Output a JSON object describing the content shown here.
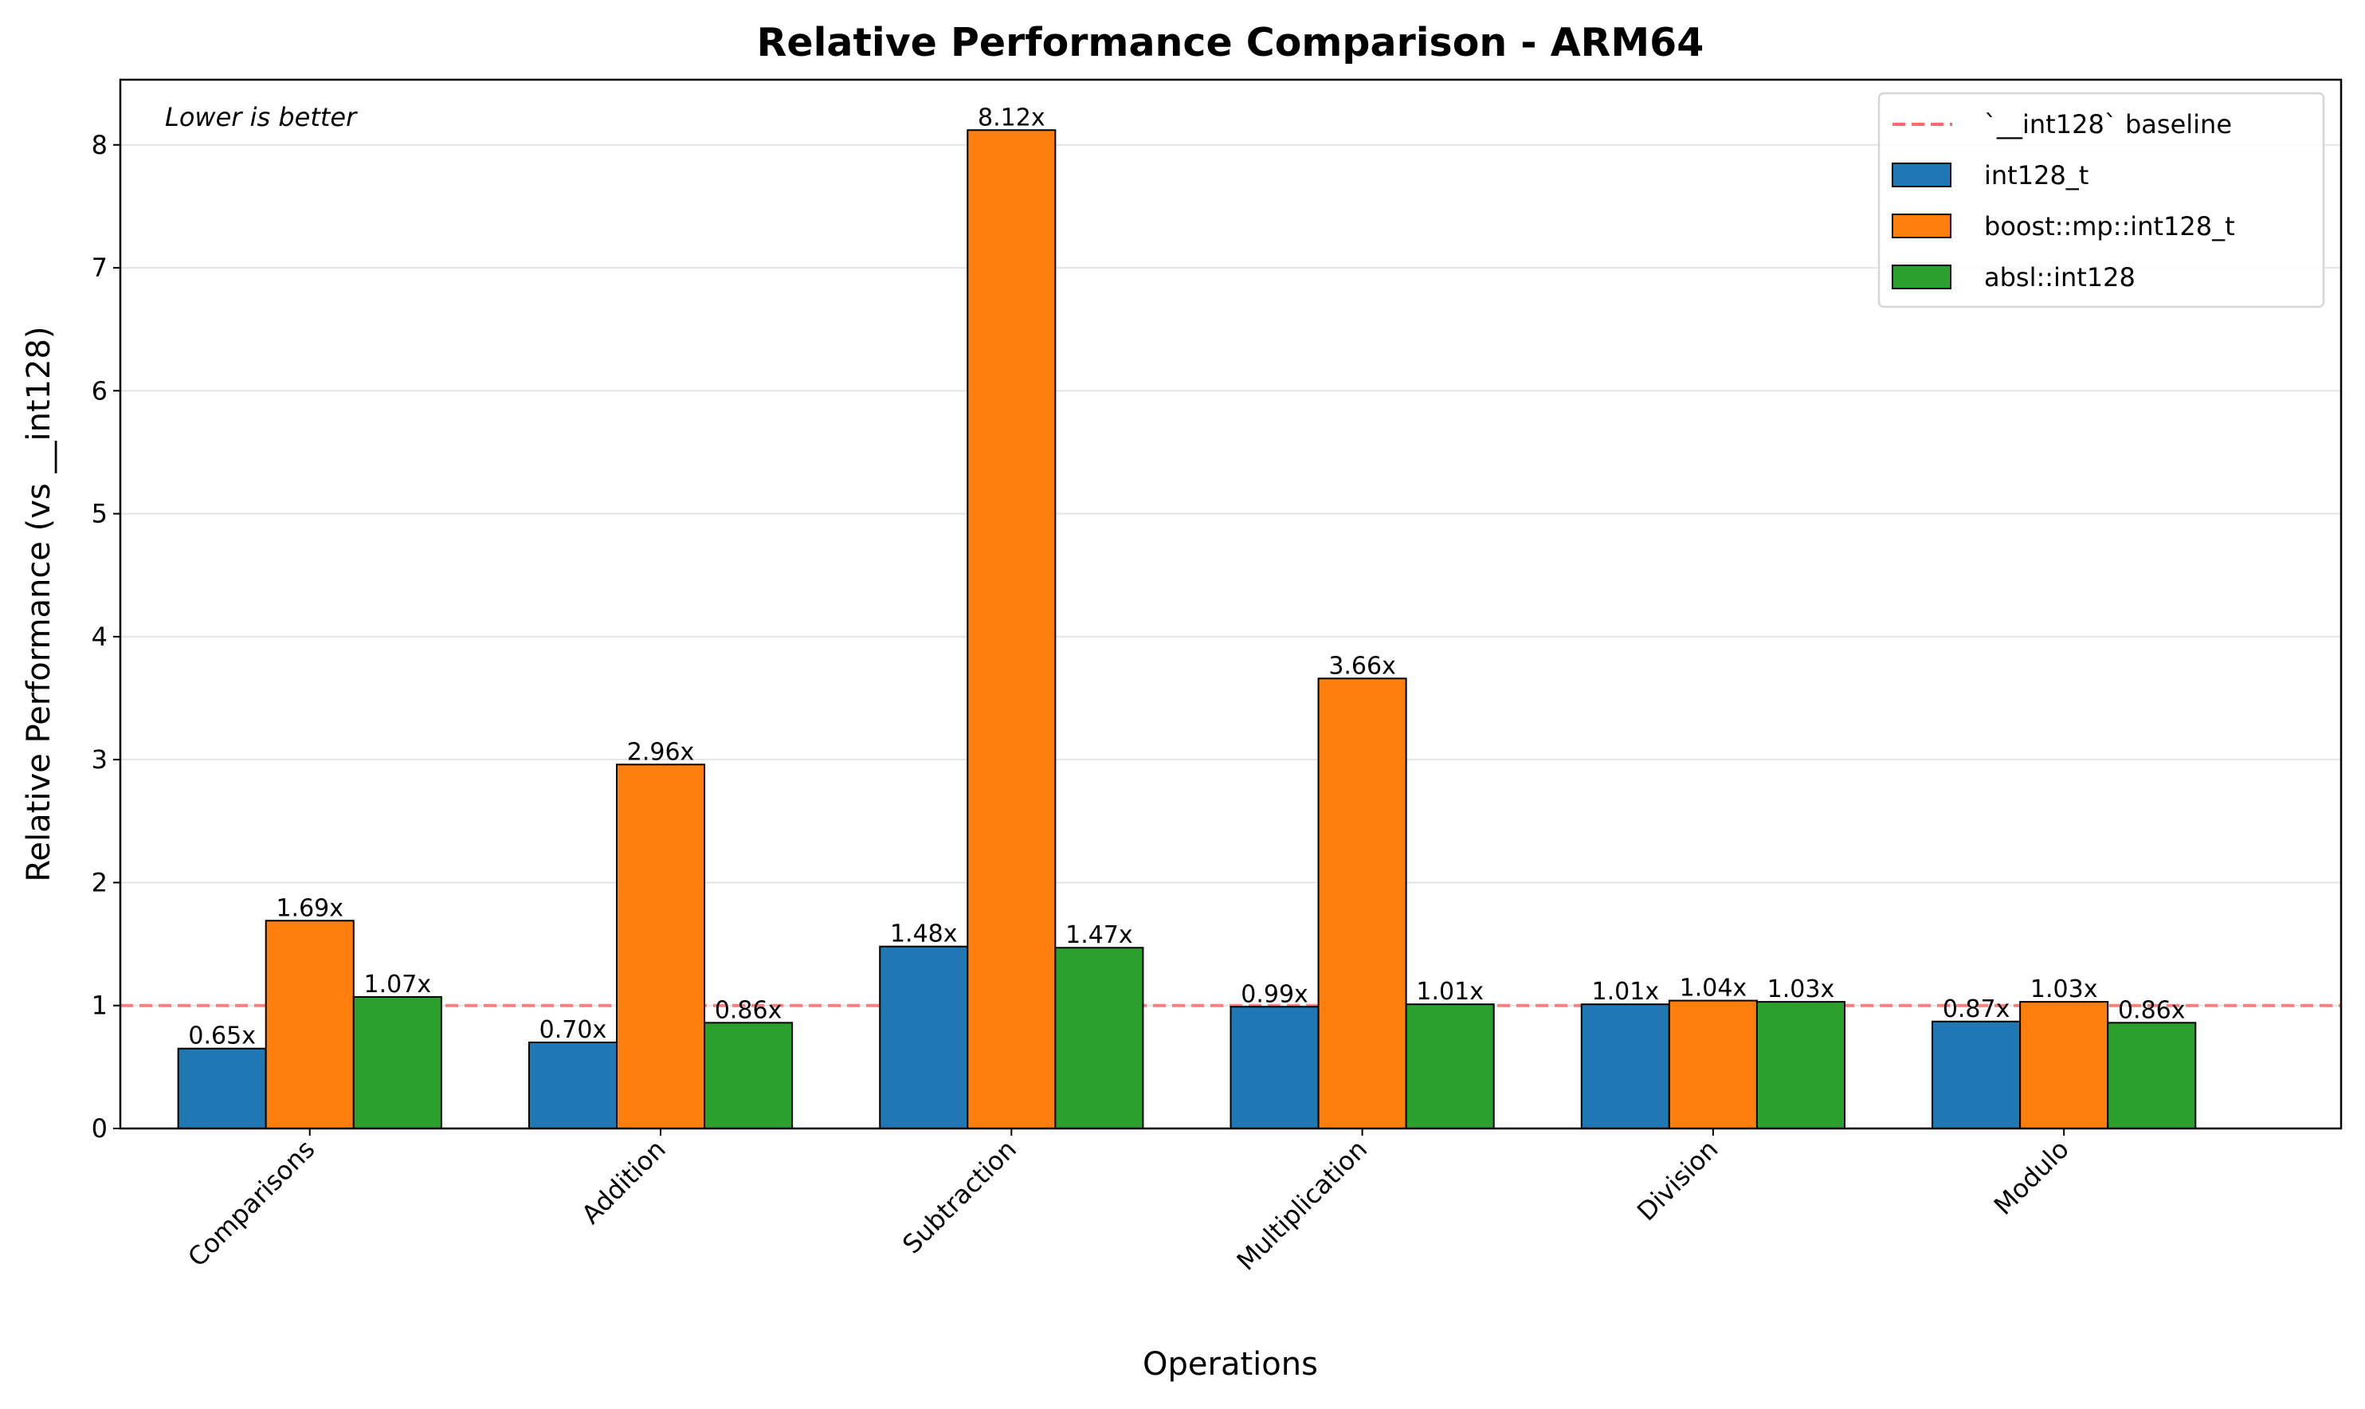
{
  "chart_data": {
    "type": "bar",
    "title": "Relative Performance Comparison - ARM64",
    "xlabel": "Operations",
    "ylabel": "Relative Performance (vs __int128)",
    "annotation": "Lower is better",
    "categories": [
      "Comparisons",
      "Addition",
      "Subtraction",
      "Multiplication",
      "Division",
      "Modulo"
    ],
    "series": [
      {
        "name": "int128_t",
        "color": "#1f77b4",
        "values": [
          0.65,
          0.7,
          1.48,
          0.99,
          1.01,
          0.87
        ],
        "labels": [
          "0.65x",
          "0.70x",
          "1.48x",
          "0.99x",
          "1.01x",
          "0.87x"
        ]
      },
      {
        "name": "boost::mp::int128_t",
        "color": "#ff7f0e",
        "values": [
          1.69,
          2.96,
          8.12,
          3.66,
          1.04,
          1.03
        ],
        "labels": [
          "1.69x",
          "2.96x",
          "8.12x",
          "3.66x",
          "1.04x",
          "1.03x"
        ]
      },
      {
        "name": "absl::int128",
        "color": "#2ca02c",
        "values": [
          1.07,
          0.86,
          1.47,
          1.01,
          1.03,
          0.86
        ],
        "labels": [
          "1.07x",
          "0.86x",
          "1.47x",
          "1.01x",
          "1.03x",
          "0.86x"
        ]
      }
    ],
    "baseline": {
      "name": "`__int128` baseline",
      "value": 1,
      "color": "#ff6b6b",
      "style": "dashed"
    },
    "ylim": [
      0,
      8.53
    ],
    "yticks": [
      0,
      1,
      2,
      3,
      4,
      5,
      6,
      7,
      8
    ],
    "grid": "horizontal",
    "legend_position": "top-right"
  }
}
